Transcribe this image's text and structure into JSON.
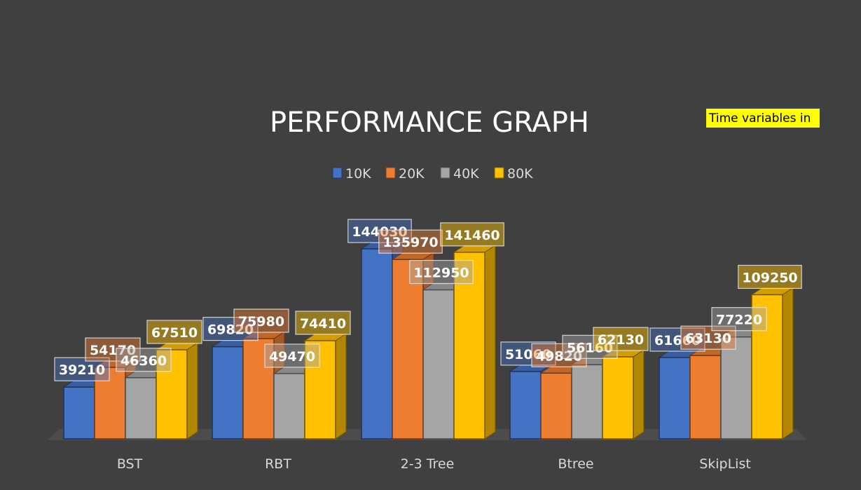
{
  "chart_data": {
    "type": "bar",
    "style": "3d-clustered-column",
    "title": "PERFORMANCE GRAPH",
    "note": "Time variables in",
    "categories": [
      "BST",
      "RBT",
      "2-3 Tree",
      "Btree",
      "SkipList"
    ],
    "series": [
      {
        "name": "10K",
        "values": [
          39210,
          69820,
          144030,
          51060,
          61660
        ]
      },
      {
        "name": "20K",
        "values": [
          54170,
          75980,
          135970,
          49820,
          63130
        ]
      },
      {
        "name": "40K",
        "values": [
          46360,
          49470,
          112950,
          56160,
          77220
        ]
      },
      {
        "name": "80K",
        "values": [
          67510,
          74410,
          141460,
          62130,
          109250
        ]
      }
    ],
    "ylim": [
      0,
      150000
    ],
    "grid": false,
    "legend_position": "top",
    "data_labels": true,
    "colors": {
      "series": [
        "#4472c4",
        "#ed7d31",
        "#a5a5a5",
        "#ffc000"
      ],
      "background": "#404040",
      "note_background": "#ffff00",
      "text": "#d9d9d9"
    }
  }
}
